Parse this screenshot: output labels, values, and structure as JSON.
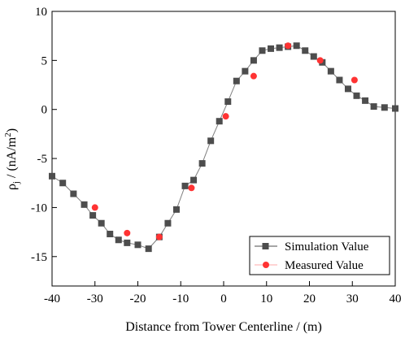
{
  "chart_data": {
    "type": "line",
    "title": "",
    "xlabel": "Distance from Tower Centerline / (m)",
    "ylabel_main": "ρ",
    "ylabel_sub": "j",
    "ylabel_units_main": " / (nA/m",
    "ylabel_units_sup": "2",
    "ylabel_units_end": ")",
    "xlim": [
      -40,
      40
    ],
    "ylim": [
      -18,
      10
    ],
    "xticks": [
      -40,
      -30,
      -20,
      -10,
      0,
      10,
      20,
      30,
      40
    ],
    "yticks": [
      -15,
      -10,
      -5,
      0,
      5,
      10
    ],
    "xtick_labels": [
      "-40",
      "-30",
      "-20",
      "-10",
      "0",
      "10",
      "20",
      "30",
      "40"
    ],
    "ytick_labels": [
      "-15",
      "-10",
      "-5",
      "0",
      "5",
      "10"
    ],
    "legend_position": "bottom-right",
    "grid": false,
    "series": [
      {
        "name": "Simulation Value",
        "color": "#4d4d4d",
        "marker": "square",
        "line": true,
        "x": [
          -40,
          -37.5,
          -35,
          -32.5,
          -30.5,
          -28.5,
          -26.5,
          -24.5,
          -22.5,
          -20,
          -17.5,
          -15,
          -13,
          -11,
          -9,
          -7,
          -5,
          -3,
          -1,
          1,
          3,
          5,
          7,
          9,
          11,
          13,
          15,
          17,
          19,
          21,
          23,
          25,
          27,
          29,
          31,
          33,
          35,
          37.5,
          40
        ],
        "y": [
          -6.8,
          -7.5,
          -8.6,
          -9.7,
          -10.8,
          -11.6,
          -12.7,
          -13.3,
          -13.6,
          -13.8,
          -14.2,
          -13.0,
          -11.6,
          -10.2,
          -7.8,
          -7.2,
          -5.5,
          -3.2,
          -1.2,
          0.8,
          2.9,
          3.9,
          5.0,
          6.0,
          6.2,
          6.3,
          6.4,
          6.5,
          6.0,
          5.4,
          4.8,
          3.9,
          3.0,
          2.1,
          1.4,
          0.9,
          0.3,
          0.2,
          0.1
        ]
      },
      {
        "name": "Measured Value",
        "color": "#ff3333",
        "marker": "circle",
        "line": false,
        "x": [
          -30,
          -22.5,
          -15,
          -7.5,
          0.5,
          7,
          15,
          22.5,
          30.5
        ],
        "y": [
          -10.0,
          -12.6,
          -13.0,
          -8.0,
          -0.7,
          3.4,
          6.5,
          5.0,
          3.0
        ]
      }
    ]
  }
}
